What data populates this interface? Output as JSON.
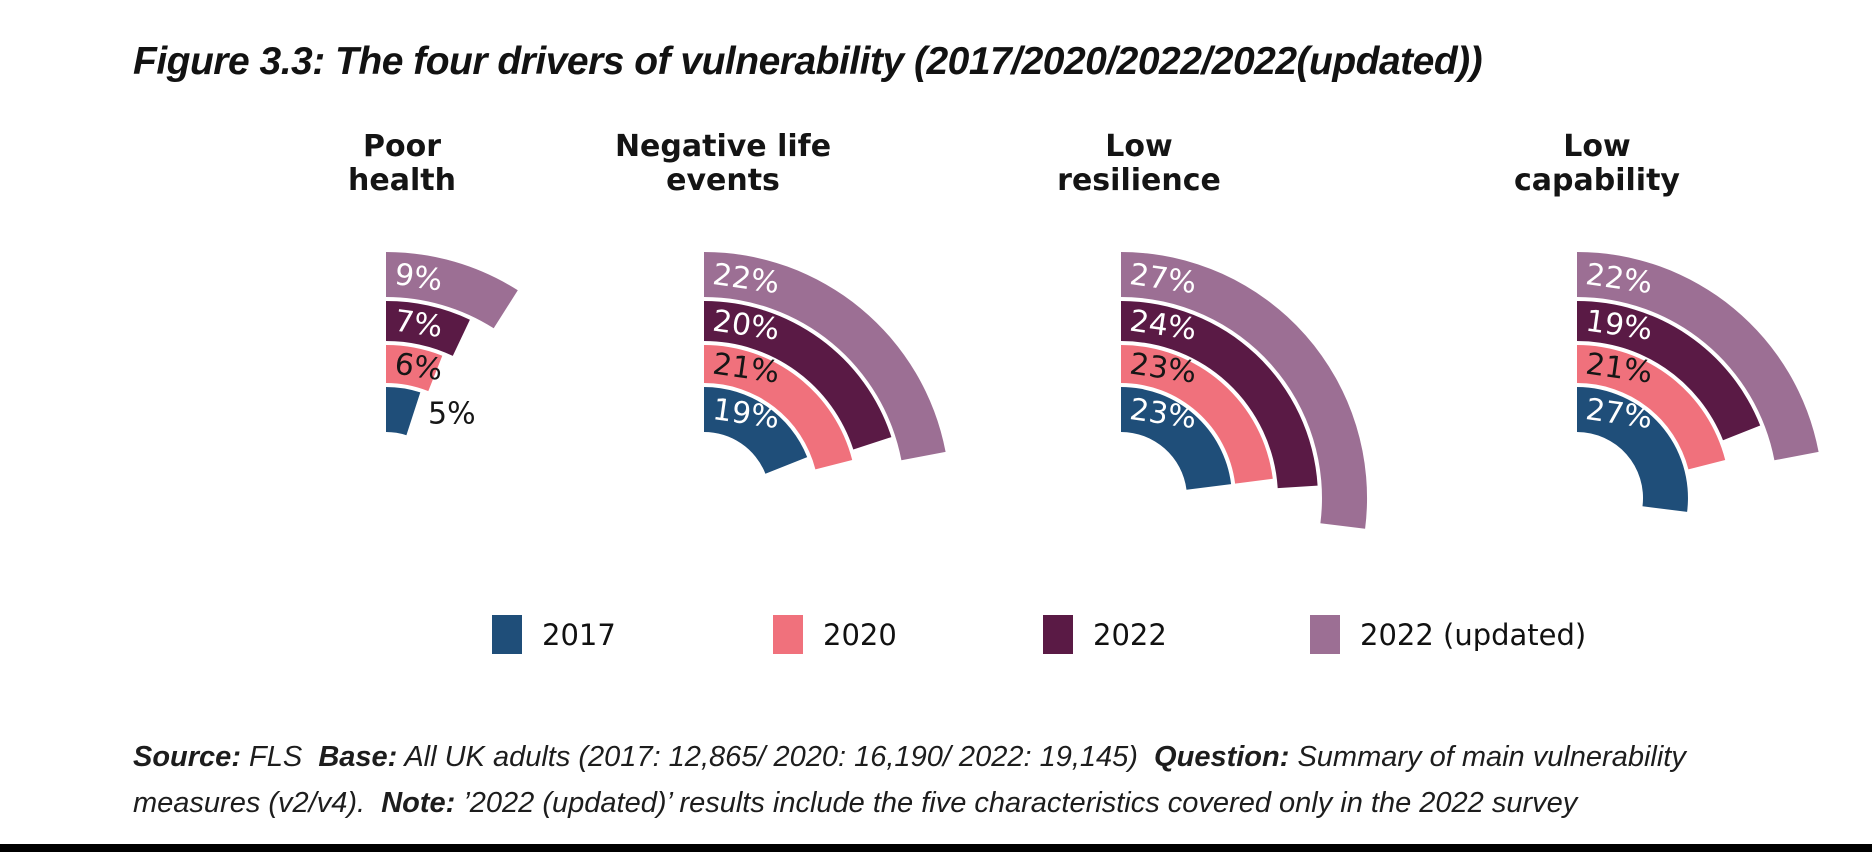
{
  "figure": {
    "title": "Figure 3.3: The four drivers of vulnerability (2017/2020/2022/2022(updated))"
  },
  "chart_titles": [
    "Poor\nhealth",
    "Negative life\nevents",
    "Low\nresilience",
    "Low\ncapability"
  ],
  "chart_data": {
    "type": "radial-bar",
    "categories": [
      "Poor health",
      "Negative life events",
      "Low resilience",
      "Low capability"
    ],
    "series": [
      {
        "name": "2017",
        "color": "#1F4E79",
        "values": [
          5,
          19,
          23,
          27
        ]
      },
      {
        "name": "2020",
        "color": "#F0717C",
        "values": [
          6,
          21,
          23,
          21
        ]
      },
      {
        "name": "2022",
        "color": "#5A1A45",
        "values": [
          7,
          20,
          24,
          19
        ]
      },
      {
        "name": "2022 (updated)",
        "color": "#9C6F94",
        "values": [
          9,
          22,
          27,
          22
        ]
      }
    ],
    "unit": "%",
    "angle_per_unit_deg": 3.6,
    "start_angle_deg": 0,
    "ring_order_inner_to_outer": [
      "2017",
      "2020",
      "2022",
      "2022 (updated)"
    ],
    "label_colors": {
      "2017": "#ffffff",
      "2020": "#161616",
      "2022": "#ffffff",
      "2022 (updated)": "#ffffff"
    },
    "outside_labels": [
      {
        "chart": 0,
        "series": "2017"
      }
    ],
    "legend_position": "bottom"
  },
  "legend": {
    "items": [
      {
        "label": "2017",
        "color": "#1F4E79"
      },
      {
        "label": "2020",
        "color": "#F0717C"
      },
      {
        "label": "2022",
        "color": "#5A1A45"
      },
      {
        "label": "2022 (updated)",
        "color": "#9C6F94"
      }
    ]
  },
  "source_note": {
    "lines": [
      [
        {
          "b": true,
          "t": "Source:"
        },
        {
          "b": false,
          "t": " FLS  "
        },
        {
          "b": true,
          "t": "Base:"
        },
        {
          "b": false,
          "t": " All UK adults (2017: 12,865/ 2020: 16,190/ 2022: 19,145)  "
        },
        {
          "b": true,
          "t": "Question:"
        },
        {
          "b": false,
          "t": " Summary of main vulnerability"
        }
      ],
      [
        {
          "b": false,
          "t": "measures (v2/v4).  "
        },
        {
          "b": true,
          "t": "Note:"
        },
        {
          "b": false,
          "t": " ’2022 (updated)’ results include the five characteristics covered only in the 2022 survey"
        }
      ]
    ]
  },
  "colors": {
    "background": "#ffffff",
    "title_text": "#121212",
    "bottom_bar": "#000000"
  }
}
